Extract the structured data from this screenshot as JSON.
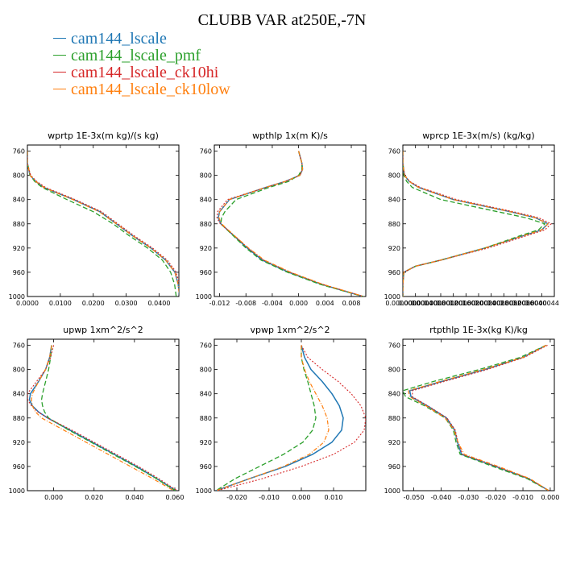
{
  "figure_title": "CLUBB VAR at250E,-7N",
  "legend": [
    {
      "name": "cam144_lscale",
      "color": "#1f77b4"
    },
    {
      "name": "cam144_lscale_pmf",
      "color": "#2ca02c"
    },
    {
      "name": "cam144_lscale_ck10hi",
      "color": "#d62728"
    },
    {
      "name": "cam144_lscale_ck10low",
      "color": "#ff7f0e"
    }
  ],
  "chart_data": [
    {
      "type": "line",
      "title": "wprtp  1E-3x(m kg)/(s kg)",
      "ylim": [
        1000,
        750
      ],
      "yticks": [
        760,
        800,
        840,
        880,
        920,
        960,
        1000
      ],
      "xlim": [
        0.0,
        0.046
      ],
      "xticks": [
        0.0,
        0.01,
        0.02,
        0.03,
        0.04
      ],
      "xtick_labels": [
        "0.0000",
        "0.0100",
        "0.0200",
        "0.0300",
        "0.0400"
      ],
      "y": [
        760,
        780,
        800,
        810,
        820,
        840,
        860,
        880,
        900,
        920,
        940,
        960,
        980,
        1000
      ],
      "series": [
        {
          "name": "cam144_lscale",
          "x": [
            0.0,
            0.0,
            0.0008,
            0.0025,
            0.005,
            0.014,
            0.022,
            0.027,
            0.032,
            0.0375,
            0.042,
            0.0448,
            0.0458,
            0.0462
          ]
        },
        {
          "name": "cam144_lscale_pmf",
          "x": [
            0.0,
            0.0,
            0.0008,
            0.0022,
            0.0045,
            0.012,
            0.02,
            0.026,
            0.031,
            0.0365,
            0.041,
            0.0435,
            0.0447,
            0.0452
          ]
        },
        {
          "name": "cam144_lscale_ck10hi",
          "x": [
            0.0,
            0.0,
            0.001,
            0.0028,
            0.0055,
            0.0145,
            0.0225,
            0.0275,
            0.0325,
            0.038,
            0.0425,
            0.0452,
            0.0462,
            0.0465
          ]
        },
        {
          "name": "cam144_lscale_ck10low",
          "x": [
            0.0,
            0.0,
            0.0008,
            0.0025,
            0.005,
            0.0138,
            0.0218,
            0.027,
            0.032,
            0.0375,
            0.042,
            0.0448,
            0.0458,
            0.0462
          ]
        }
      ]
    },
    {
      "type": "line",
      "title": "wpthlp  1x(m K)/s",
      "ylim": [
        1000,
        750
      ],
      "yticks": [
        760,
        800,
        840,
        880,
        920,
        960,
        1000
      ],
      "xlim": [
        -0.0128,
        0.0102
      ],
      "xticks": [
        -0.012,
        -0.008,
        -0.004,
        0.0,
        0.004,
        0.008
      ],
      "xtick_labels": [
        "-0.012",
        "-0.008",
        "-0.004",
        "0.000",
        "0.004",
        "0.008"
      ],
      "y": [
        760,
        780,
        790,
        800,
        810,
        820,
        840,
        860,
        870,
        880,
        900,
        920,
        940,
        960,
        980,
        1000
      ],
      "series": [
        {
          "name": "cam144_lscale",
          "x": [
            0.0,
            0.0005,
            0.0006,
            0.0002,
            -0.002,
            -0.005,
            -0.0105,
            -0.012,
            -0.0122,
            -0.0118,
            -0.0098,
            -0.0078,
            -0.0055,
            -0.0015,
            0.0035,
            0.0098
          ]
        },
        {
          "name": "cam144_lscale_pmf",
          "x": [
            0.0,
            0.0005,
            0.0005,
            0.0,
            -0.0015,
            -0.0045,
            -0.0095,
            -0.0112,
            -0.0117,
            -0.0118,
            -0.0099,
            -0.008,
            -0.0057,
            -0.0017,
            0.0033,
            0.0098
          ]
        },
        {
          "name": "cam144_lscale_ck10hi",
          "x": [
            0.0,
            0.0005,
            0.0006,
            0.0002,
            -0.002,
            -0.005,
            -0.0108,
            -0.0123,
            -0.0124,
            -0.0119,
            -0.0097,
            -0.0077,
            -0.0053,
            -0.0013,
            0.0037,
            0.0099
          ]
        },
        {
          "name": "cam144_lscale_ck10low",
          "x": [
            0.0,
            0.0005,
            0.0006,
            0.0002,
            -0.002,
            -0.005,
            -0.0105,
            -0.012,
            -0.0121,
            -0.0117,
            -0.0097,
            -0.0076,
            -0.0052,
            -0.0012,
            0.0037,
            0.0099
          ]
        }
      ]
    },
    {
      "type": "line",
      "title": "wprcp  1E-3x(m/s) (kg/kg)",
      "ylim": [
        1000,
        750
      ],
      "yticks": [
        760,
        800,
        840,
        880,
        920,
        960,
        1000
      ],
      "xlim": [
        0.0,
        4.8e-06
      ],
      "xticks": [
        0.0,
        4e-07,
        8e-07,
        1.2e-06,
        1.6e-06,
        2e-06,
        2.4e-06,
        2.8e-06,
        3.2e-06,
        3.6e-06,
        4e-06,
        4.4e-06
      ],
      "xtick_labels": [
        "0.0000000",
        "0.0000004",
        "0.0000008",
        "0.0000012",
        "0.0000016",
        "0.0000020",
        "0.0000024",
        "0.0000028",
        "0.0000032",
        "0.0000036",
        "0.0000040",
        "0.0000044"
      ],
      "y": [
        760,
        780,
        800,
        810,
        820,
        840,
        860,
        870,
        880,
        890,
        900,
        920,
        940,
        950,
        960,
        980,
        1000
      ],
      "series": [
        {
          "name": "cam144_lscale",
          "x": [
            0.0,
            0.0,
            5e-08,
            2e-07,
            5e-07,
            1.6e-06,
            3.4e-06,
            4.2e-06,
            4.6e-06,
            4.4e-06,
            3.8e-06,
            2.6e-06,
            1.2e-06,
            4e-07,
            3e-08,
            0.0,
            0.0
          ]
        },
        {
          "name": "cam144_lscale_pmf",
          "x": [
            0.0,
            0.0,
            3e-08,
            1.2e-07,
            3e-07,
            1.2e-06,
            3e-06,
            3.9e-06,
            4.5e-06,
            4.3e-06,
            3.7e-06,
            2.6e-06,
            1.2e-06,
            4e-07,
            3e-08,
            0.0,
            0.0
          ]
        },
        {
          "name": "cam144_lscale_ck10hi",
          "x": [
            0.0,
            0.0,
            6e-08,
            2.2e-07,
            5.5e-07,
            1.7e-06,
            3.5e-06,
            4.3e-06,
            4.7e-06,
            4.5e-06,
            3.9e-06,
            2.7e-06,
            1.2e-06,
            4e-07,
            3e-08,
            0.0,
            0.0
          ]
        },
        {
          "name": "cam144_lscale_ck10low",
          "x": [
            0.0,
            0.0,
            5e-08,
            2e-07,
            5e-07,
            1.6e-06,
            3.4e-06,
            4.2e-06,
            4.6e-06,
            4.4e-06,
            3.8e-06,
            2.6e-06,
            1.2e-06,
            4e-07,
            3e-08,
            0.0,
            0.0
          ]
        }
      ]
    },
    {
      "type": "line",
      "title": "upwp  1xm^2/s^2",
      "ylim": [
        1000,
        750
      ],
      "yticks": [
        760,
        800,
        840,
        880,
        920,
        960,
        1000
      ],
      "xlim": [
        -0.013,
        0.062
      ],
      "xticks": [
        0.0,
        0.02,
        0.04,
        0.06
      ],
      "xtick_labels": [
        "0.000",
        "0.020",
        "0.040",
        "0.060"
      ],
      "y": [
        760,
        780,
        800,
        820,
        840,
        850,
        860,
        870,
        880,
        900,
        920,
        940,
        960,
        980,
        1000
      ],
      "series": [
        {
          "name": "cam144_lscale",
          "x": [
            -0.001,
            -0.002,
            -0.004,
            -0.0075,
            -0.0115,
            -0.012,
            -0.0105,
            -0.0075,
            -0.003,
            0.008,
            0.019,
            0.03,
            0.041,
            0.051,
            0.0605
          ]
        },
        {
          "name": "cam144_lscale_pmf",
          "x": [
            -0.001,
            -0.0015,
            -0.0025,
            -0.004,
            -0.0055,
            -0.006,
            -0.0055,
            -0.0045,
            -0.0025,
            0.0075,
            0.0185,
            0.0295,
            0.0405,
            0.0508,
            0.0603
          ]
        },
        {
          "name": "cam144_lscale_ck10hi",
          "x": [
            0.0,
            -0.0015,
            -0.004,
            -0.0085,
            -0.013,
            -0.0128,
            -0.011,
            -0.0078,
            -0.003,
            0.009,
            0.02,
            0.031,
            0.042,
            0.052,
            0.0612
          ]
        },
        {
          "name": "cam144_lscale_ck10low",
          "x": [
            -0.001,
            -0.002,
            -0.004,
            -0.0075,
            -0.0105,
            -0.011,
            -0.0105,
            -0.009,
            -0.006,
            0.005,
            0.016,
            0.027,
            0.038,
            0.049,
            0.0595
          ]
        }
      ]
    },
    {
      "type": "line",
      "title": "vpwp  1xm^2/s^2",
      "ylim": [
        1000,
        750
      ],
      "yticks": [
        760,
        800,
        840,
        880,
        920,
        960,
        1000
      ],
      "xlim": [
        -0.027,
        0.02
      ],
      "xticks": [
        -0.02,
        -0.01,
        0.0,
        0.01
      ],
      "xtick_labels": [
        "-0.020",
        "-0.010",
        "0.000",
        "0.010"
      ],
      "y": [
        760,
        780,
        800,
        820,
        840,
        860,
        880,
        900,
        920,
        940,
        960,
        980,
        1000
      ],
      "series": [
        {
          "name": "cam144_lscale",
          "x": [
            0.0,
            0.001,
            0.003,
            0.0065,
            0.0095,
            0.0118,
            0.013,
            0.0125,
            0.0095,
            0.0035,
            -0.005,
            -0.016,
            -0.0265
          ]
        },
        {
          "name": "cam144_lscale_pmf",
          "x": [
            0.0,
            0.0,
            0.0008,
            0.002,
            0.003,
            0.004,
            0.0045,
            0.0035,
            0.0005,
            -0.0055,
            -0.013,
            -0.0205,
            -0.0265
          ]
        },
        {
          "name": "cam144_lscale_ck10hi",
          "x": [
            0.0,
            0.002,
            0.0065,
            0.0115,
            0.0155,
            0.0185,
            0.02,
            0.0195,
            0.0165,
            0.01,
            0.0,
            -0.012,
            -0.0262
          ]
        },
        {
          "name": "cam144_lscale_ck10low",
          "x": [
            0.0,
            0.0,
            0.001,
            0.0025,
            0.0045,
            0.0065,
            0.008,
            0.0085,
            0.007,
            0.0025,
            -0.0055,
            -0.016,
            -0.0265
          ]
        }
      ]
    },
    {
      "type": "line",
      "title": "rtpthlp  1E-3x(kg K)/kg",
      "ylim": [
        1000,
        750
      ],
      "yticks": [
        760,
        800,
        840,
        880,
        920,
        960,
        1000
      ],
      "xlim": [
        -0.054,
        0.0015
      ],
      "xticks": [
        -0.05,
        -0.04,
        -0.03,
        -0.02,
        -0.01,
        0.0
      ],
      "xtick_labels": [
        "-0.050",
        "-0.040",
        "-0.030",
        "-0.020",
        "-0.010",
        "0.000"
      ],
      "y": [
        760,
        780,
        800,
        820,
        835,
        845,
        860,
        880,
        900,
        920,
        940,
        960,
        980,
        1000
      ],
      "series": [
        {
          "name": "cam144_lscale",
          "x": [
            -0.0015,
            -0.01,
            -0.024,
            -0.04,
            -0.0515,
            -0.051,
            -0.045,
            -0.038,
            -0.035,
            -0.034,
            -0.0325,
            -0.02,
            -0.008,
            -0.0005
          ]
        },
        {
          "name": "cam144_lscale_pmf",
          "x": [
            -0.0015,
            -0.011,
            -0.026,
            -0.043,
            -0.054,
            -0.053,
            -0.046,
            -0.0385,
            -0.0355,
            -0.0345,
            -0.033,
            -0.021,
            -0.0085,
            -0.0005
          ]
        },
        {
          "name": "cam144_lscale_ck10hi",
          "x": [
            -0.001,
            -0.0095,
            -0.023,
            -0.039,
            -0.0505,
            -0.0505,
            -0.0448,
            -0.0378,
            -0.0348,
            -0.0338,
            -0.0322,
            -0.0198,
            -0.0078,
            -0.0005
          ]
        },
        {
          "name": "cam144_lscale_ck10low",
          "x": [
            -0.0015,
            -0.01,
            -0.0245,
            -0.0405,
            -0.052,
            -0.0515,
            -0.0455,
            -0.0385,
            -0.0352,
            -0.0338,
            -0.0315,
            -0.019,
            -0.0075,
            -0.0005
          ]
        }
      ]
    }
  ]
}
